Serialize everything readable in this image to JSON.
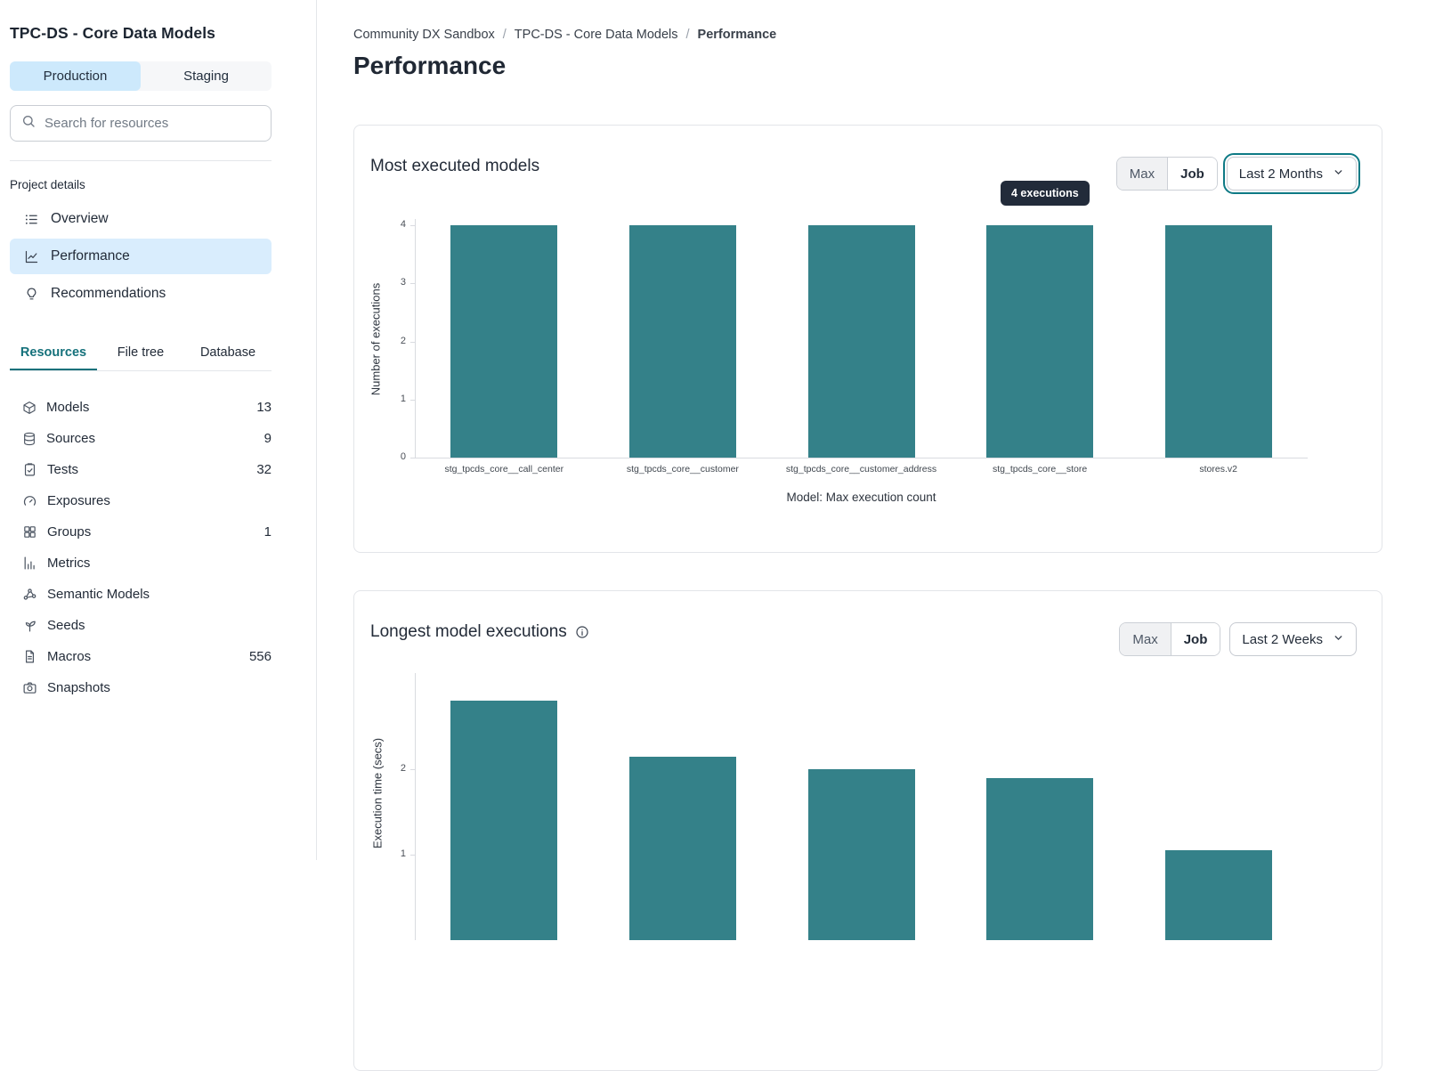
{
  "colors": {
    "accent_teal": "#15717b",
    "bar_teal": "#348189",
    "active_nav_bg": "#d9edfd",
    "production_tab_bg": "#cde9fc",
    "tooltip_bg": "#222b3a",
    "card_border": "#e3e5e9"
  },
  "sidebar": {
    "project_title": "TPC-DS - Core Data Models",
    "environment_tabs": [
      {
        "label": "Production",
        "active": true
      },
      {
        "label": "Staging",
        "active": false
      }
    ],
    "search_placeholder": "Search for resources",
    "project_details_heading": "Project details",
    "nav_items": [
      {
        "icon": "overview-list-icon",
        "label": "Overview",
        "active": false
      },
      {
        "icon": "performance-chart-icon",
        "label": "Performance",
        "active": true
      },
      {
        "icon": "lightbulb-icon",
        "label": "Recommendations",
        "active": false
      }
    ],
    "resource_tabs": [
      {
        "label": "Resources",
        "active": true
      },
      {
        "label": "File tree",
        "active": false
      },
      {
        "label": "Database",
        "active": false
      }
    ],
    "resources": [
      {
        "icon": "cube-icon",
        "label": "Models",
        "count": "13"
      },
      {
        "icon": "database-icon",
        "label": "Sources",
        "count": "9"
      },
      {
        "icon": "clipboard-check-icon",
        "label": "Tests",
        "count": "32"
      },
      {
        "icon": "gauge-icon",
        "label": "Exposures",
        "count": ""
      },
      {
        "icon": "grid-icon",
        "label": "Groups",
        "count": "1"
      },
      {
        "icon": "bar-chart-icon",
        "label": "Metrics",
        "count": ""
      },
      {
        "icon": "nodes-icon",
        "label": "Semantic Models",
        "count": ""
      },
      {
        "icon": "seedling-icon",
        "label": "Seeds",
        "count": ""
      },
      {
        "icon": "file-text-icon",
        "label": "Macros",
        "count": "556"
      },
      {
        "icon": "camera-icon",
        "label": "Snapshots",
        "count": ""
      }
    ]
  },
  "breadcrumb": {
    "separator": "/",
    "items": [
      {
        "label": "Community DX Sandbox",
        "current": false
      },
      {
        "label": "TPC-DS - Core Data Models",
        "current": false
      },
      {
        "label": "Performance",
        "current": true
      }
    ]
  },
  "page_title": "Performance",
  "cards": [
    {
      "title": "Most executed models",
      "toggle": {
        "max": "Max",
        "job": "Job"
      },
      "dropdown": {
        "label": "Last 2 Months",
        "focused": true
      },
      "tooltip": "4 executions"
    },
    {
      "title": "Longest model executions",
      "toggle": {
        "max": "Max",
        "job": "Job"
      },
      "dropdown": {
        "label": "Last 2 Weeks",
        "focused": false
      }
    }
  ],
  "chart_data": [
    {
      "type": "bar",
      "title": "Most executed models",
      "categories": [
        "stg_tpcds_core__call_center",
        "stg_tpcds_core__customer",
        "stg_tpcds_core__customer_address",
        "stg_tpcds_core__store",
        "stores.v2"
      ],
      "values": [
        4,
        4,
        4,
        4,
        4
      ],
      "xlabel": "Model: Max execution count",
      "ylabel": "Number of executions",
      "ylim": [
        0,
        4
      ],
      "yticks": [
        0,
        1,
        2,
        3,
        4
      ],
      "grid": false,
      "legend": false,
      "bar_color": "#348189",
      "annotation": {
        "text": "4 executions",
        "target_category": "stg_tpcds_core__store"
      }
    },
    {
      "type": "bar",
      "title": "Longest model executions",
      "values": [
        2.8,
        2.15,
        2.0,
        1.9,
        1.05
      ],
      "ylabel": "Execution time (secs)",
      "yticks": [
        1,
        2
      ],
      "grid": false,
      "legend": false,
      "bar_color": "#348189",
      "note": "x-axis labels and baseline are cut off at the bottom edge of the viewport"
    }
  ]
}
